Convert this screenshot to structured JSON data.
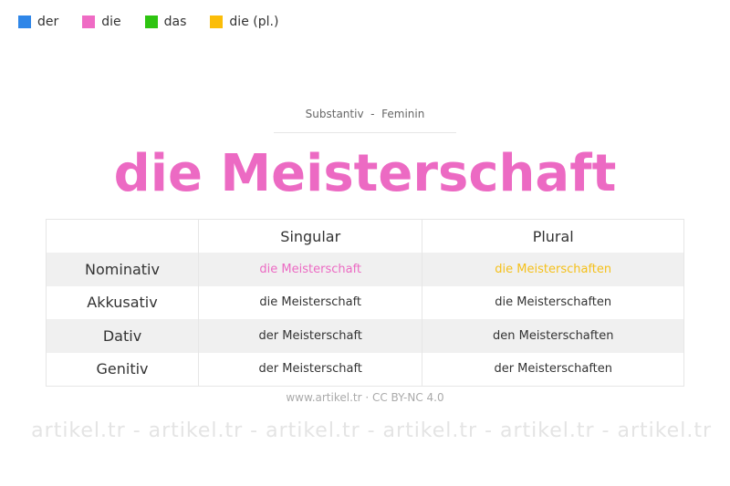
{
  "watermark": "artikel.tr - artikel.tr - artikel.tr - artikel.tr - artikel.tr - artikel.tr",
  "legend": [
    {
      "label": "der",
      "color": "#2f86e8"
    },
    {
      "label": "die",
      "color": "#ef6bc4"
    },
    {
      "label": "das",
      "color": "#2ec411"
    },
    {
      "label": "die (pl.)",
      "color": "#fbbd08"
    }
  ],
  "subtitle": "Substantiv  -  Feminin",
  "title": "die Meisterschaft",
  "title_color": "#ec6ac3",
  "table": {
    "headers": [
      "",
      "Singular",
      "Plural"
    ],
    "rows": [
      {
        "case": "Nominativ",
        "singular": "die Meisterschaft",
        "plural": "die Meisterschaften",
        "singular_color": "#ec6ac3",
        "plural_color": "#f5c01a"
      },
      {
        "case": "Akkusativ",
        "singular": "die Meisterschaft",
        "plural": "die Meisterschaften"
      },
      {
        "case": "Dativ",
        "singular": "der Meisterschaft",
        "plural": "den Meisterschaften"
      },
      {
        "case": "Genitiv",
        "singular": "der Meisterschaft",
        "plural": "der Meisterschaften"
      }
    ]
  },
  "footer": "www.artikel.tr · CC BY-NC 4.0"
}
